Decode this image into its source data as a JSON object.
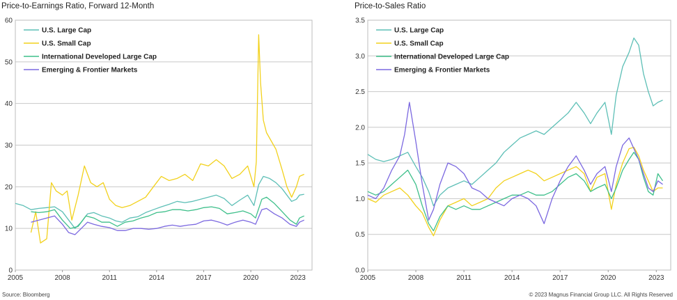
{
  "footer": {
    "source": "Source: Bloomberg",
    "copyright": "© 2023 Magnus Financial Group LLC. All Rights Reserved"
  },
  "colors": {
    "us_large_cap": "#5dbfb6",
    "us_small_cap": "#f2d11c",
    "intl_developed": "#3dbf8a",
    "emerging_frontier": "#7b68e0",
    "grid": "#c8c8c8"
  },
  "chart_data": [
    {
      "type": "line",
      "title": "Price-to-Earnings Ratio, Forward 12-Month",
      "xlim": [
        2005,
        2023.9
      ],
      "ylim": [
        0,
        60
      ],
      "x_ticks": [
        "2005",
        "2008",
        "2011",
        "2014",
        "2017",
        "2020",
        "2023"
      ],
      "y_ticks": [
        "0",
        "10",
        "20",
        "30",
        "40",
        "50",
        "60"
      ],
      "grid": "horizontal",
      "legend_position": "top-left",
      "series": [
        {
          "name": "U.S. Large Cap",
          "color_key": "us_large_cap",
          "x": [
            2005,
            2005.5,
            2006,
            2006.5,
            2007,
            2007.5,
            2008,
            2008.4,
            2008.8,
            2009.2,
            2009.6,
            2010,
            2010.5,
            2011,
            2011.4,
            2011.8,
            2012.3,
            2012.8,
            2013.3,
            2013.8,
            2014.3,
            2014.8,
            2015.3,
            2015.8,
            2016.3,
            2016.8,
            2017.3,
            2017.8,
            2018.3,
            2018.8,
            2019.3,
            2019.8,
            2020.2,
            2020.5,
            2020.8,
            2021.2,
            2021.6,
            2022,
            2022.3,
            2022.6,
            2022.9,
            2023.1,
            2023.4
          ],
          "y": [
            16,
            15.5,
            14.5,
            14.8,
            15,
            15.2,
            14,
            12,
            10,
            11.5,
            13.5,
            13.8,
            13,
            12.5,
            11.8,
            11.5,
            12.5,
            12.8,
            13.8,
            14.5,
            15.2,
            15.8,
            16.5,
            16.2,
            16.5,
            17,
            17.5,
            18,
            17.2,
            15.5,
            16.8,
            18,
            15.5,
            20.5,
            22.5,
            22,
            21,
            19.5,
            18,
            16.5,
            17,
            18,
            18.2
          ]
        },
        {
          "name": "U.S. Small Cap",
          "color_key": "us_small_cap",
          "x": [
            2006,
            2006.3,
            2006.6,
            2007,
            2007.3,
            2007.6,
            2008,
            2008.3,
            2008.6,
            2009,
            2009.4,
            2009.8,
            2010.2,
            2010.6,
            2011,
            2011.4,
            2011.8,
            2012.3,
            2012.8,
            2013.3,
            2013.8,
            2014.3,
            2014.8,
            2015.3,
            2015.8,
            2016.3,
            2016.8,
            2017.3,
            2017.8,
            2018.3,
            2018.8,
            2019.3,
            2019.8,
            2020.2,
            2020.35,
            2020.5,
            2020.62,
            2020.8,
            2021,
            2021.3,
            2021.6,
            2022,
            2022.3,
            2022.6,
            2022.9,
            2023.1,
            2023.4
          ],
          "y": [
            9,
            14,
            6.5,
            7.5,
            21,
            19,
            18,
            19,
            12,
            18,
            25,
            21,
            20,
            21,
            17,
            15.5,
            15,
            15.5,
            16.5,
            17.5,
            20,
            22.5,
            21.5,
            22,
            23,
            21.5,
            25.5,
            25,
            26.5,
            25,
            22,
            23,
            25,
            20,
            26,
            56.5,
            45,
            36,
            33,
            31,
            29,
            24,
            20,
            17.5,
            20,
            22.5,
            23
          ]
        },
        {
          "name": "International Developed Large Cap",
          "color_key": "intl_developed",
          "x": [
            2006,
            2006.5,
            2007,
            2007.5,
            2008,
            2008.5,
            2009,
            2009.5,
            2010,
            2010.5,
            2011,
            2011.5,
            2012,
            2012.5,
            2013,
            2013.5,
            2014,
            2014.5,
            2015,
            2015.5,
            2016,
            2016.5,
            2017,
            2017.5,
            2018,
            2018.5,
            2019,
            2019.5,
            2020,
            2020.3,
            2020.7,
            2021,
            2021.5,
            2022,
            2022.5,
            2022.9,
            2023.1,
            2023.4
          ],
          "y": [
            14,
            13.8,
            14,
            14.5,
            12,
            10,
            10.5,
            13,
            12.5,
            11.5,
            11.5,
            10.5,
            11.5,
            11.8,
            12.5,
            13,
            13.8,
            14,
            14.5,
            14.5,
            14.2,
            14.5,
            15,
            15.2,
            14.8,
            13.5,
            13.8,
            14.2,
            13.5,
            12.5,
            17,
            17.5,
            16,
            14,
            12,
            11,
            12.5,
            13
          ]
        },
        {
          "name": "Emerging & Frontier Markets",
          "color_key": "emerging_frontier",
          "x": [
            2006,
            2006.5,
            2007,
            2007.5,
            2008,
            2008.4,
            2008.8,
            2009.2,
            2009.6,
            2010,
            2010.5,
            2011,
            2011.5,
            2012,
            2012.5,
            2013,
            2013.5,
            2014,
            2014.5,
            2015,
            2015.5,
            2016,
            2016.5,
            2017,
            2017.5,
            2018,
            2018.5,
            2019,
            2019.5,
            2020,
            2020.3,
            2020.7,
            2021,
            2021.5,
            2022,
            2022.5,
            2022.9,
            2023.1,
            2023.4
          ],
          "y": [
            11.5,
            12,
            12.5,
            13,
            11,
            9,
            8.5,
            10,
            11.5,
            11,
            10.5,
            10.2,
            9.5,
            9.5,
            10,
            10,
            9.8,
            10,
            10.5,
            10.8,
            10.5,
            10.8,
            11,
            11.8,
            12,
            11.5,
            10.8,
            11.5,
            12,
            11.5,
            11,
            14.5,
            14.8,
            13.5,
            12.5,
            11,
            10.5,
            11.5,
            12
          ]
        }
      ]
    },
    {
      "type": "line",
      "title": "Price-to-Sales Ratio",
      "xlim": [
        2005,
        2023.9
      ],
      "ylim": [
        0,
        3.5
      ],
      "x_ticks": [
        "2005",
        "2008",
        "2011",
        "2014",
        "2017",
        "2020",
        "2023"
      ],
      "y_ticks": [
        "0.0",
        "0.5",
        "1.0",
        "1.5",
        "2.0",
        "2.5",
        "3.0",
        "3.5"
      ],
      "grid": "horizontal",
      "legend_position": "top-left",
      "series": [
        {
          "name": "U.S. Large Cap",
          "color_key": "us_large_cap",
          "x": [
            2005,
            2005.5,
            2006,
            2006.5,
            2007,
            2007.5,
            2008,
            2008.4,
            2008.8,
            2009.1,
            2009.5,
            2010,
            2010.5,
            2011,
            2011.5,
            2012,
            2012.5,
            2013,
            2013.5,
            2014,
            2014.5,
            2015,
            2015.5,
            2016,
            2016.5,
            2017,
            2017.5,
            2018,
            2018.5,
            2018.9,
            2019.3,
            2019.8,
            2020.2,
            2020.5,
            2020.9,
            2021.3,
            2021.6,
            2021.9,
            2022.2,
            2022.5,
            2022.8,
            2023.1,
            2023.4
          ],
          "y": [
            1.62,
            1.55,
            1.52,
            1.55,
            1.6,
            1.65,
            1.45,
            1.3,
            1.1,
            0.9,
            1.05,
            1.15,
            1.2,
            1.25,
            1.2,
            1.3,
            1.4,
            1.5,
            1.65,
            1.75,
            1.85,
            1.9,
            1.95,
            1.9,
            2.0,
            2.1,
            2.2,
            2.35,
            2.2,
            2.05,
            2.2,
            2.35,
            1.9,
            2.45,
            2.85,
            3.05,
            3.25,
            3.15,
            2.75,
            2.5,
            2.3,
            2.35,
            2.38
          ]
        },
        {
          "name": "U.S. Small Cap",
          "color_key": "us_small_cap",
          "x": [
            2005,
            2005.5,
            2006,
            2006.5,
            2007,
            2007.5,
            2008,
            2008.4,
            2008.8,
            2009.1,
            2009.5,
            2010,
            2010.5,
            2011,
            2011.5,
            2012,
            2012.5,
            2013,
            2013.5,
            2014,
            2014.5,
            2015,
            2015.5,
            2016,
            2016.5,
            2017,
            2017.5,
            2018,
            2018.5,
            2018.9,
            2019.3,
            2019.8,
            2020.2,
            2020.5,
            2020.9,
            2021.3,
            2021.6,
            2021.9,
            2022.2,
            2022.5,
            2022.8,
            2023.1,
            2023.4
          ],
          "y": [
            1.0,
            0.95,
            1.05,
            1.1,
            1.15,
            1.05,
            0.9,
            0.8,
            0.6,
            0.48,
            0.7,
            0.9,
            0.95,
            1.0,
            0.9,
            0.95,
            1.0,
            1.15,
            1.25,
            1.3,
            1.35,
            1.4,
            1.35,
            1.25,
            1.3,
            1.35,
            1.4,
            1.45,
            1.35,
            1.1,
            1.3,
            1.35,
            0.85,
            1.2,
            1.5,
            1.7,
            1.72,
            1.6,
            1.4,
            1.25,
            1.1,
            1.15,
            1.15
          ]
        },
        {
          "name": "International Developed Large Cap",
          "color_key": "intl_developed",
          "x": [
            2005,
            2005.5,
            2006,
            2006.5,
            2007,
            2007.5,
            2008,
            2008.4,
            2008.8,
            2009.1,
            2009.5,
            2010,
            2010.5,
            2011,
            2011.5,
            2012,
            2012.5,
            2013,
            2013.5,
            2014,
            2014.5,
            2015,
            2015.5,
            2016,
            2016.5,
            2017,
            2017.5,
            2018,
            2018.5,
            2018.9,
            2019.3,
            2019.8,
            2020.2,
            2020.5,
            2020.9,
            2021.3,
            2021.6,
            2021.9,
            2022.2,
            2022.5,
            2022.8,
            2023.1,
            2023.4
          ],
          "y": [
            1.1,
            1.05,
            1.1,
            1.2,
            1.3,
            1.4,
            1.2,
            0.9,
            0.65,
            0.55,
            0.75,
            0.9,
            0.85,
            0.9,
            0.85,
            0.85,
            0.9,
            0.95,
            1.0,
            1.05,
            1.05,
            1.1,
            1.05,
            1.05,
            1.1,
            1.2,
            1.3,
            1.35,
            1.25,
            1.1,
            1.15,
            1.2,
            1.0,
            1.15,
            1.4,
            1.55,
            1.65,
            1.55,
            1.3,
            1.1,
            1.05,
            1.35,
            1.25
          ]
        },
        {
          "name": "Emerging & Frontier Markets",
          "color_key": "emerging_frontier",
          "x": [
            2005,
            2005.5,
            2006,
            2006.5,
            2007,
            2007.3,
            2007.6,
            2008,
            2008.4,
            2008.8,
            2009.1,
            2009.5,
            2010,
            2010.5,
            2011,
            2011.5,
            2012,
            2012.5,
            2013,
            2013.5,
            2014,
            2014.5,
            2015,
            2015.5,
            2016,
            2016.5,
            2017,
            2017.5,
            2018,
            2018.5,
            2018.9,
            2019.3,
            2019.8,
            2020.2,
            2020.5,
            2020.9,
            2021.3,
            2021.6,
            2021.9,
            2022.2,
            2022.5,
            2022.8,
            2023.1,
            2023.4
          ],
          "y": [
            1.05,
            1.0,
            1.15,
            1.4,
            1.6,
            1.9,
            2.35,
            1.8,
            1.2,
            0.7,
            0.85,
            1.2,
            1.5,
            1.45,
            1.35,
            1.15,
            1.1,
            1.0,
            0.95,
            0.9,
            1.0,
            1.05,
            1.0,
            0.9,
            0.65,
            1.0,
            1.25,
            1.45,
            1.6,
            1.4,
            1.2,
            1.35,
            1.45,
            1.1,
            1.45,
            1.75,
            1.85,
            1.7,
            1.55,
            1.35,
            1.15,
            1.1,
            1.25,
            1.2
          ]
        }
      ]
    }
  ]
}
